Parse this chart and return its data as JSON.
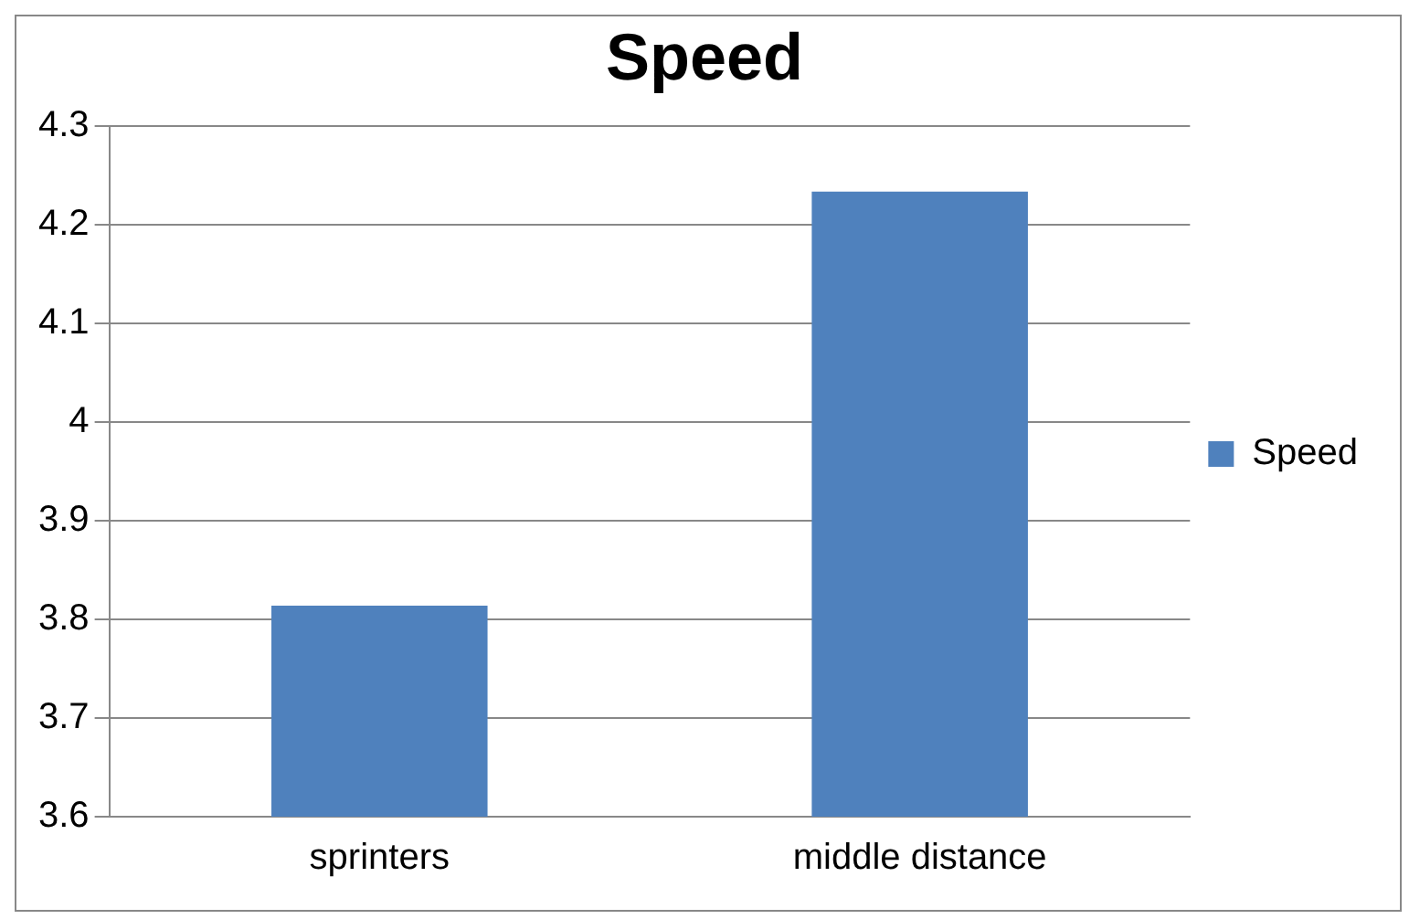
{
  "chart_data": {
    "type": "bar",
    "title": "Speed",
    "categories": [
      "sprinters",
      "middle distance"
    ],
    "series": [
      {
        "name": "Speed",
        "color": "#4f81bd",
        "values": [
          3.814,
          4.234
        ]
      }
    ],
    "ylim": [
      3.6,
      4.3
    ],
    "yticks": [
      3.6,
      3.7,
      3.8,
      3.9,
      4,
      4.1,
      4.2,
      4.3
    ],
    "grid": "y",
    "legend": "right"
  }
}
